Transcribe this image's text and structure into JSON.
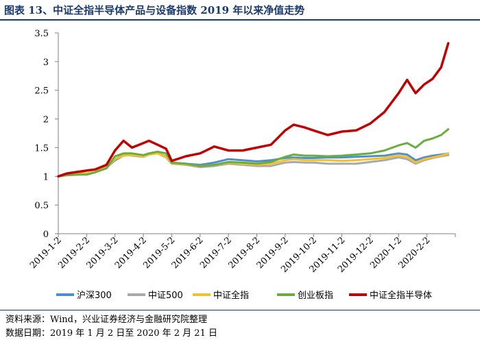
{
  "title": "图表 13、中证全指半导体产品与设备指数 2019 年以来净值走势",
  "footer": {
    "source": "资料来源：Wind，兴业证券经济与金融研究院整理",
    "date": "数据日期：2019 年 1 月 2 日至 2020 年 2 月 21 日"
  },
  "chart_data": {
    "type": "line",
    "yticks": [
      "0",
      "0.5",
      "1",
      "1.5",
      "2",
      "2.5",
      "3",
      "3.5"
    ],
    "ylim": [
      0,
      3.5
    ],
    "xticks": [
      "2019-1-2",
      "2019-2-2",
      "2019-3-2",
      "2019-4-2",
      "2019-5-2",
      "2019-6-2",
      "2019-7-2",
      "2019-8-2",
      "2019-9-2",
      "2019-10-2",
      "2019-11-2",
      "2019-12-2",
      "2020-1-2",
      "2020-2-2"
    ],
    "x": [
      0,
      0.3,
      0.7,
      1.0,
      1.3,
      1.7,
      2.0,
      2.3,
      2.6,
      3.0,
      3.2,
      3.5,
      3.8,
      4.0,
      4.5,
      5.0,
      5.5,
      6.0,
      6.5,
      7.0,
      7.5,
      8.0,
      8.3,
      8.7,
      9.0,
      9.5,
      10.0,
      10.5,
      11.0,
      11.5,
      12.0,
      12.3,
      12.6,
      12.9,
      13.2,
      13.5,
      13.75
    ],
    "series": [
      {
        "name": "沪深300",
        "color": "#4e8fd0",
        "width": 3,
        "values": [
          1.0,
          1.03,
          1.05,
          1.05,
          1.08,
          1.15,
          1.28,
          1.36,
          1.38,
          1.36,
          1.4,
          1.4,
          1.35,
          1.24,
          1.22,
          1.2,
          1.24,
          1.3,
          1.28,
          1.26,
          1.28,
          1.32,
          1.33,
          1.32,
          1.32,
          1.33,
          1.33,
          1.34,
          1.35,
          1.36,
          1.4,
          1.38,
          1.28,
          1.33,
          1.36,
          1.38,
          1.4
        ]
      },
      {
        "name": "中证500",
        "color": "#a9a9a9",
        "width": 3,
        "values": [
          1.0,
          1.02,
          1.03,
          1.04,
          1.08,
          1.16,
          1.3,
          1.38,
          1.36,
          1.34,
          1.38,
          1.4,
          1.33,
          1.22,
          1.2,
          1.16,
          1.18,
          1.22,
          1.2,
          1.18,
          1.18,
          1.24,
          1.25,
          1.24,
          1.24,
          1.22,
          1.22,
          1.22,
          1.25,
          1.28,
          1.33,
          1.3,
          1.22,
          1.28,
          1.32,
          1.35,
          1.37
        ]
      },
      {
        "name": "中证全指",
        "color": "#f5c02a",
        "width": 3,
        "values": [
          1.0,
          1.02,
          1.04,
          1.05,
          1.08,
          1.15,
          1.3,
          1.36,
          1.37,
          1.35,
          1.38,
          1.4,
          1.34,
          1.23,
          1.21,
          1.18,
          1.2,
          1.24,
          1.22,
          1.2,
          1.22,
          1.28,
          1.3,
          1.28,
          1.28,
          1.28,
          1.27,
          1.28,
          1.3,
          1.32,
          1.36,
          1.34,
          1.24,
          1.3,
          1.33,
          1.36,
          1.4
        ]
      },
      {
        "name": "创业板指",
        "color": "#6aad3d",
        "width": 3,
        "values": [
          1.0,
          1.02,
          1.03,
          1.03,
          1.07,
          1.14,
          1.35,
          1.4,
          1.4,
          1.37,
          1.4,
          1.43,
          1.4,
          1.24,
          1.22,
          1.18,
          1.2,
          1.25,
          1.24,
          1.22,
          1.25,
          1.34,
          1.38,
          1.36,
          1.36,
          1.35,
          1.36,
          1.38,
          1.4,
          1.45,
          1.54,
          1.58,
          1.5,
          1.62,
          1.66,
          1.72,
          1.82
        ]
      },
      {
        "name": "中证全指半导体",
        "color": "#c00000",
        "width": 3.5,
        "values": [
          1.0,
          1.05,
          1.08,
          1.1,
          1.12,
          1.2,
          1.45,
          1.62,
          1.5,
          1.58,
          1.62,
          1.55,
          1.48,
          1.27,
          1.35,
          1.4,
          1.52,
          1.45,
          1.45,
          1.5,
          1.55,
          1.8,
          1.9,
          1.85,
          1.8,
          1.72,
          1.78,
          1.8,
          1.92,
          2.12,
          2.45,
          2.68,
          2.45,
          2.6,
          2.7,
          2.9,
          3.32
        ]
      }
    ]
  }
}
